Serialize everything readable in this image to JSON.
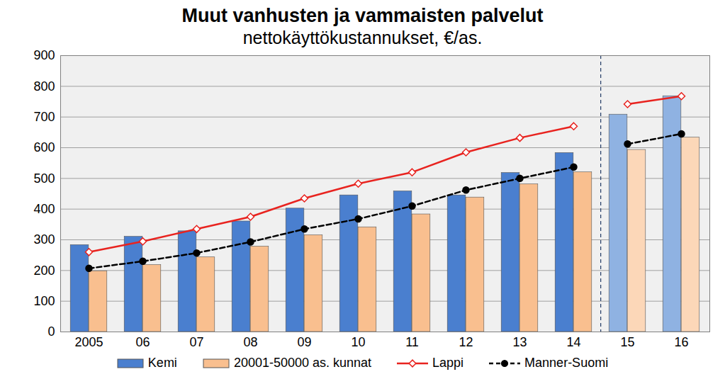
{
  "chart_data": {
    "type": "bar",
    "title": "Muut vanhusten ja vammaisten palvelut",
    "subtitle": "nettokäyttökustannukset, €/as.",
    "categories": [
      "2005",
      "06",
      "07",
      "08",
      "09",
      "10",
      "11",
      "12",
      "13",
      "14",
      "15",
      "16"
    ],
    "series": [
      {
        "name": "Kemi",
        "type": "bar",
        "colors": [
          "#4a7fcf",
          "#4a7fcf",
          "#4a7fcf",
          "#4a7fcf",
          "#4a7fcf",
          "#4a7fcf",
          "#4a7fcf",
          "#4a7fcf",
          "#4a7fcf",
          "#4a7fcf",
          "#8fb2e2",
          "#8fb2e2"
        ],
        "values": [
          283,
          310,
          328,
          360,
          402,
          445,
          458,
          445,
          518,
          583,
          708,
          768
        ]
      },
      {
        "name": "20001-50000 as. kunnat",
        "type": "bar",
        "colors": [
          "#f9bf8f",
          "#f9bf8f",
          "#f9bf8f",
          "#f9bf8f",
          "#f9bf8f",
          "#f9bf8f",
          "#f9bf8f",
          "#f9bf8f",
          "#f9bf8f",
          "#f9bf8f",
          "#fcd7b8",
          "#fcd7b8"
        ],
        "values": [
          198,
          218,
          243,
          278,
          315,
          341,
          383,
          438,
          481,
          520,
          593,
          633
        ]
      },
      {
        "name": "Lappi",
        "type": "line",
        "color": "#e8231f",
        "marker": "diamond",
        "line_style": "solid",
        "values": [
          260,
          295,
          335,
          375,
          435,
          483,
          520,
          585,
          632,
          670,
          742,
          768
        ]
      },
      {
        "name": "Manner-Suomi",
        "type": "line",
        "color": "#000000",
        "marker": "circle",
        "line_style": "dashed",
        "values": [
          207,
          230,
          257,
          293,
          335,
          368,
          410,
          462,
          500,
          537,
          612,
          645
        ]
      }
    ],
    "ylim": [
      0,
      900
    ],
    "yticks": [
      0,
      100,
      200,
      300,
      400,
      500,
      600,
      700,
      800,
      900
    ],
    "grid": true,
    "legend": "bottom"
  }
}
